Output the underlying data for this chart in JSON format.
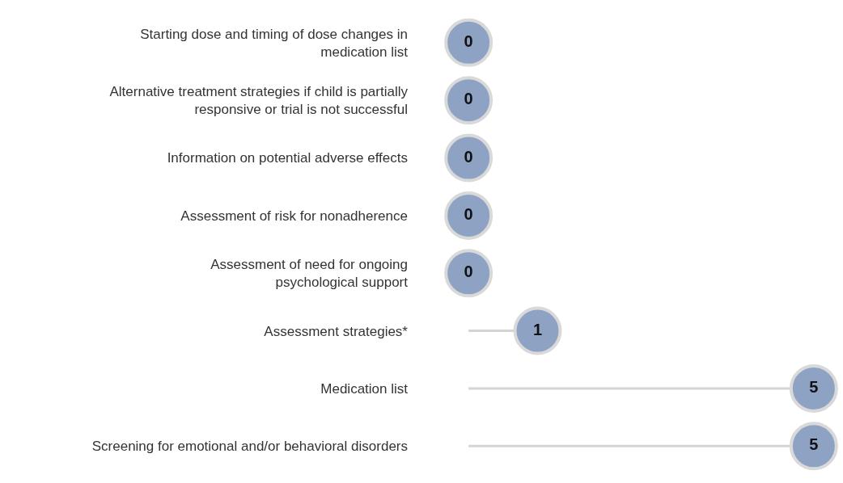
{
  "chart_data": {
    "type": "lollipop",
    "orientation": "horizontal",
    "tick_labels": "y",
    "data_labels": true,
    "categories": [
      "Starting dose and timing of dose changes in\nmedication list",
      "Alternative treatment strategies if child is partially\nresponsive or trial is not successful",
      "Information on potential adverse effects",
      "Assessment of risk for nonadherence",
      "Assessment of need for ongoing\npsychological support",
      "Assessment strategies*",
      "Medication list",
      "Screening for emotional and/or behavioral disorders"
    ],
    "values": [
      0,
      0,
      0,
      0,
      0,
      1,
      5,
      5
    ],
    "color": "#8ea2c4"
  }
}
